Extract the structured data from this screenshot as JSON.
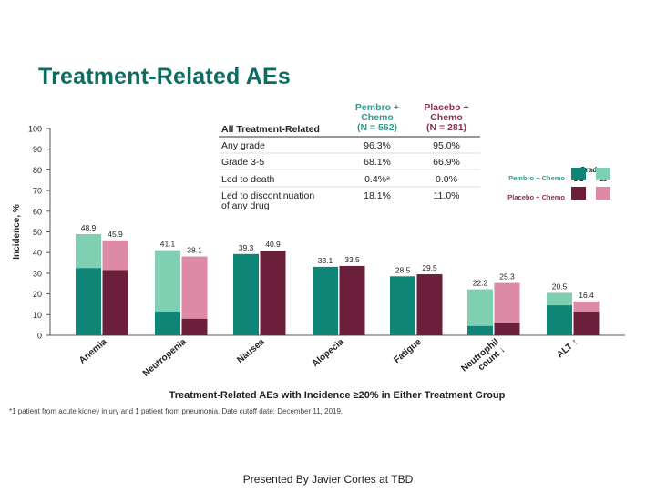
{
  "slide": {
    "title": "Treatment-Related AEs",
    "footnote": "*1 patient from acute kidney injury and 1 patient from pneumonia. Date cutoff date: December 11, 2019.",
    "credit": "Presented By Javier Cortes at TBD"
  },
  "summary_table": {
    "columns": [
      {
        "lines": [
          "Pembro +",
          "Chemo",
          "(N = 562)"
        ]
      },
      {
        "lines": [
          "Placebo +",
          "Chemo",
          "(N = 281)"
        ]
      }
    ],
    "header_label": "All Treatment-Related",
    "rows": [
      {
        "label_lines": [
          "Any grade"
        ],
        "values": [
          "96.3%",
          "95.0%"
        ]
      },
      {
        "label_lines": [
          "Grade 3-5"
        ],
        "values": [
          "68.1%",
          "66.9%"
        ]
      },
      {
        "label_lines": [
          "Led to death"
        ],
        "values": [
          "0.4%ᵃ",
          "0.0%"
        ]
      },
      {
        "label_lines": [
          "Led to discontinuation",
          "of any drug"
        ],
        "values": [
          "18.1%",
          "11.0%"
        ]
      }
    ]
  },
  "legend": {
    "title": "Grade",
    "col_labels": [
      "1-2",
      "≥3"
    ],
    "items": [
      {
        "label": "Pembro + Chemo",
        "color_low": "#7fcfb2",
        "color_high": "#0e8576",
        "text_color": "#2a9d8f"
      },
      {
        "label": "Placebo + Chemo",
        "color_low": "#dd8aa7",
        "color_high": "#6b1f3b",
        "text_color": "#8b2f52"
      }
    ]
  },
  "chart_data": {
    "type": "bar",
    "stacked": true,
    "title": "Treatment-Related AEs with Incidence ≥20% in Either Treatment Group",
    "ylabel": "Incidence, %",
    "ylim": [
      0,
      100
    ],
    "yticks": [
      0,
      10,
      20,
      30,
      40,
      50,
      60,
      70,
      80,
      90,
      100
    ],
    "grid": false,
    "categories": [
      "Anemia",
      "Neutropenia",
      "Nausea",
      "Alopecia",
      "Fatigue",
      "Neutrophil count ↓",
      "ALT ↑"
    ],
    "tick_label_lines": [
      [
        "Anemia"
      ],
      [
        "Neutropenia"
      ],
      [
        "Nausea"
      ],
      [
        "Alopecia"
      ],
      [
        "Fatigue"
      ],
      [
        "Neutrophil",
        "count ↓"
      ],
      [
        "ALT ↑"
      ]
    ],
    "series": [
      {
        "name": "Pembro + Chemo",
        "total": [
          48.9,
          41.1,
          39.3,
          33.1,
          28.5,
          22.2,
          20.5
        ],
        "total_labels": [
          "48.9",
          "41.1",
          "39.3",
          "33.1",
          "28.5",
          "22.2",
          "20.5"
        ],
        "grade_3_plus": [
          32.5,
          11.5,
          39.3,
          33.1,
          28.5,
          4.5,
          14.5
        ],
        "color_grade_1_2": "#7fcfb2",
        "color_grade_3_plus": "#0e8576"
      },
      {
        "name": "Placebo + Chemo",
        "total": [
          45.9,
          38.1,
          40.9,
          33.5,
          29.5,
          25.3,
          16.4
        ],
        "total_labels": [
          "45.9",
          "38.1",
          "40.9",
          "33.5",
          "29.5",
          "25.3",
          "16.4"
        ],
        "grade_3_plus": [
          31.5,
          8.0,
          40.9,
          33.5,
          29.5,
          6.0,
          11.5
        ],
        "color_grade_1_2": "#dd8aa7",
        "color_grade_3_plus": "#6b1f3b"
      }
    ]
  }
}
